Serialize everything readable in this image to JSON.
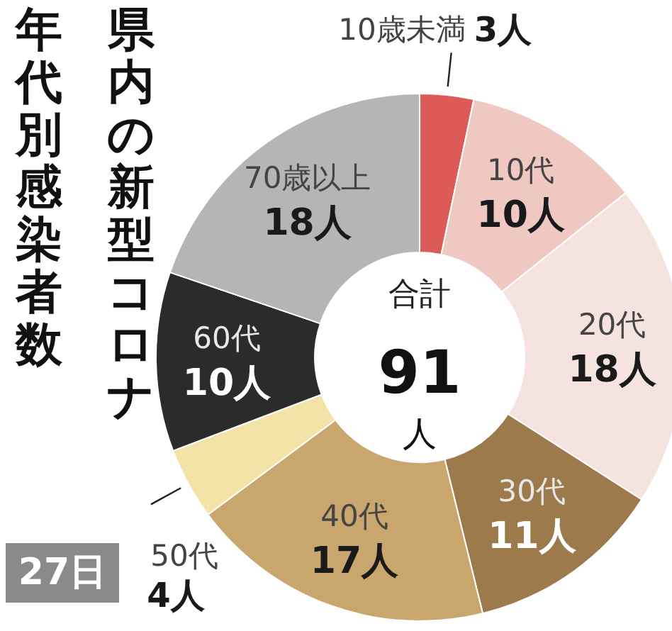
{
  "chart_data": {
    "type": "donut",
    "title": "県内の新型コロナ年代別感染者数",
    "categories": [
      "10歳未満",
      "10代",
      "20代",
      "30代",
      "40代",
      "50代",
      "60代",
      "70歳以上"
    ],
    "values": [
      3,
      10,
      18,
      11,
      17,
      4,
      10,
      18
    ],
    "value_labels": [
      "3人",
      "10人",
      "18人",
      "11人",
      "17人",
      "4人",
      "10人",
      "18人"
    ],
    "colors": [
      "#dc5a58",
      "#f0c8c2",
      "#f5e3e0",
      "#9c7a4c",
      "#c9a66e",
      "#f3e3a6",
      "#2b2b2b",
      "#b5b5b5"
    ],
    "annotations": [
      "合計",
      "91人",
      "27日"
    ]
  }
}
